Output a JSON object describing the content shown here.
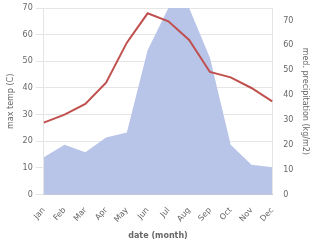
{
  "chart_data": {
    "type": "line",
    "categories": [
      "Jan",
      "Feb",
      "Mar",
      "Apr",
      "May",
      "Jun",
      "Jul",
      "Aug",
      "Sep",
      "Oct",
      "Nov",
      "Dec"
    ],
    "xlabel": "date (month)",
    "ylabel": "max temp (C)",
    "y2label": "med. precipitation (kg/m2)",
    "series": [
      {
        "type": "area",
        "color": "#b8c4e8",
        "axis": "y2",
        "values": [
          15,
          20,
          17,
          23,
          25,
          58,
          75,
          75,
          55,
          20,
          12,
          11
        ]
      },
      {
        "type": "line",
        "color": "#c0504d",
        "values": [
          27,
          30,
          34,
          42,
          57,
          68,
          65,
          58,
          46,
          44,
          40,
          35
        ]
      }
    ],
    "ylim": [
      0,
      70
    ],
    "yticks": [
      0,
      10,
      20,
      30,
      40,
      50,
      60,
      70
    ],
    "y2lim": [
      0,
      75
    ],
    "y2ticks": [
      0,
      10,
      20,
      30,
      40,
      50,
      60,
      70
    ],
    "grid": true
  }
}
